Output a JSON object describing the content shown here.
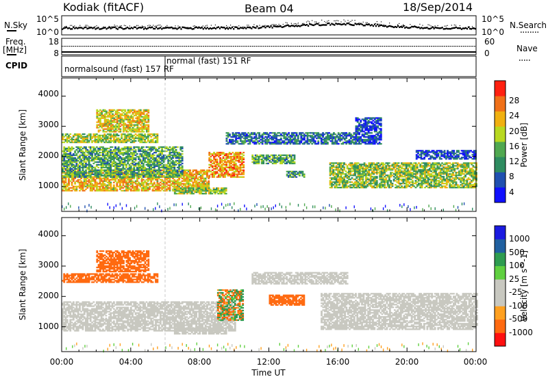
{
  "header": {
    "station": "Kodiak (fitACF)",
    "beam": "Beam 04",
    "date": "18/Sep/2014"
  },
  "noise_panel": {
    "left_label": "N.Sky",
    "left_ticks": [
      "10^5",
      "10^0"
    ],
    "right_ticks": [
      "10^5",
      "10^0"
    ],
    "right_label": "N.Search"
  },
  "freq_panel": {
    "left_label_1": "Freq.",
    "left_label_2": "[MHz]",
    "left_ticks": [
      "18",
      "8"
    ],
    "right_ticks": [
      "60",
      "0"
    ],
    "right_label": "Nave"
  },
  "cpid_panel": {
    "label": "CPID",
    "mode_1": "normalsound (fast) 157 RF",
    "mode_2": "normal (fast) 151 RF"
  },
  "colors": {
    "scatter_gray": "#c8c8c0",
    "power_scale": [
      "#1010ff",
      "#2050b0",
      "#2e8c60",
      "#50a850",
      "#b8d820",
      "#f0b010",
      "#f07018",
      "#ff2010"
    ],
    "velocity_scale": [
      "#ff1010",
      "#ff6a10",
      "#ffa020",
      "#c8c8c0",
      "#c8c8c0",
      "#60d040",
      "#2e9c50",
      "#2060a0",
      "#1a1ae0"
    ]
  },
  "chart_data": [
    {
      "type": "heatmap",
      "title": "",
      "xlabel": "Time UT",
      "ylabel": "Slant Range [km]",
      "x_tick_labels": [
        "00:00",
        "04:00",
        "08:00",
        "12:00",
        "16:00",
        "20:00",
        "00:00"
      ],
      "x_range_hours": [
        0,
        24
      ],
      "y_tick_labels": [
        "1000",
        "2000",
        "3000",
        "4000"
      ],
      "ylim": [
        180,
        4600
      ],
      "colorbar_label": "Power [dB]",
      "colorbar_ticks": [
        "4",
        "8",
        "12",
        "16",
        "20",
        "24",
        "28"
      ],
      "colorbar_range": [
        0,
        32
      ],
      "mode_change_hour": 6.0,
      "regions": [
        {
          "t": [
            0.0,
            8.5
          ],
          "r": [
            850,
            1550
          ],
          "v": [
            15,
            28
          ]
        },
        {
          "t": [
            0.0,
            7.0
          ],
          "r": [
            1300,
            2300
          ],
          "v": [
            6,
            20
          ]
        },
        {
          "t": [
            0.0,
            5.5
          ],
          "r": [
            2450,
            2750
          ],
          "v": [
            10,
            24
          ]
        },
        {
          "t": [
            2.0,
            5.0
          ],
          "r": [
            2800,
            3550
          ],
          "v": [
            14,
            26
          ]
        },
        {
          "t": [
            8.5,
            10.5
          ],
          "r": [
            1300,
            2150
          ],
          "v": [
            18,
            30
          ]
        },
        {
          "t": [
            6.5,
            9.5
          ],
          "r": [
            750,
            950
          ],
          "v": [
            10,
            22
          ]
        },
        {
          "t": [
            9.5,
            17.0
          ],
          "r": [
            2400,
            2800
          ],
          "v": [
            2,
            14
          ]
        },
        {
          "t": [
            11.0,
            13.5
          ],
          "r": [
            1750,
            2050
          ],
          "v": [
            6,
            20
          ]
        },
        {
          "t": [
            13.0,
            14.0
          ],
          "r": [
            1300,
            1500
          ],
          "v": [
            4,
            18
          ]
        },
        {
          "t": [
            15.5,
            24.0
          ],
          "r": [
            950,
            1800
          ],
          "v": [
            8,
            24
          ]
        },
        {
          "t": [
            17.0,
            18.5
          ],
          "r": [
            2400,
            3300
          ],
          "v": [
            0,
            10
          ]
        },
        {
          "t": [
            20.5,
            24.0
          ],
          "r": [
            1900,
            2200
          ],
          "v": [
            0,
            10
          ]
        }
      ]
    },
    {
      "type": "heatmap",
      "title": "",
      "xlabel": "Time UT",
      "ylabel": "Slant Range [km]",
      "x_tick_labels": [
        "00:00",
        "04:00",
        "08:00",
        "12:00",
        "16:00",
        "20:00",
        "00:00"
      ],
      "x_range_hours": [
        0,
        24
      ],
      "y_tick_labels": [
        "1000",
        "2000",
        "3000",
        "4000"
      ],
      "ylim": [
        180,
        4600
      ],
      "colorbar_label": "Velocity [m s^-1]",
      "colorbar_ticks": [
        "1000",
        "500",
        "100",
        "25",
        "-25",
        "-100",
        "-500",
        "-1000"
      ],
      "regions": [
        {
          "t": [
            0.0,
            10.0
          ],
          "r": [
            850,
            1800
          ],
          "v": [
            -20,
            20
          ]
        },
        {
          "t": [
            0.0,
            5.5
          ],
          "r": [
            2450,
            2750
          ],
          "v": [
            -400,
            -120
          ]
        },
        {
          "t": [
            2.0,
            5.0
          ],
          "r": [
            2800,
            3500
          ],
          "v": [
            -450,
            -100
          ]
        },
        {
          "t": [
            9.0,
            10.5
          ],
          "r": [
            1200,
            2200
          ],
          "v": [
            -500,
            500
          ]
        },
        {
          "t": [
            6.5,
            9.5
          ],
          "r": [
            750,
            950
          ],
          "v": [
            -20,
            20
          ]
        },
        {
          "t": [
            12.0,
            14.0
          ],
          "r": [
            1700,
            2050
          ],
          "v": [
            -500,
            -150
          ]
        },
        {
          "t": [
            11.0,
            16.5
          ],
          "r": [
            2400,
            2800
          ],
          "v": [
            -20,
            20
          ]
        },
        {
          "t": [
            15.0,
            24.0
          ],
          "r": [
            900,
            2100
          ],
          "v": [
            -20,
            20
          ]
        }
      ]
    }
  ]
}
